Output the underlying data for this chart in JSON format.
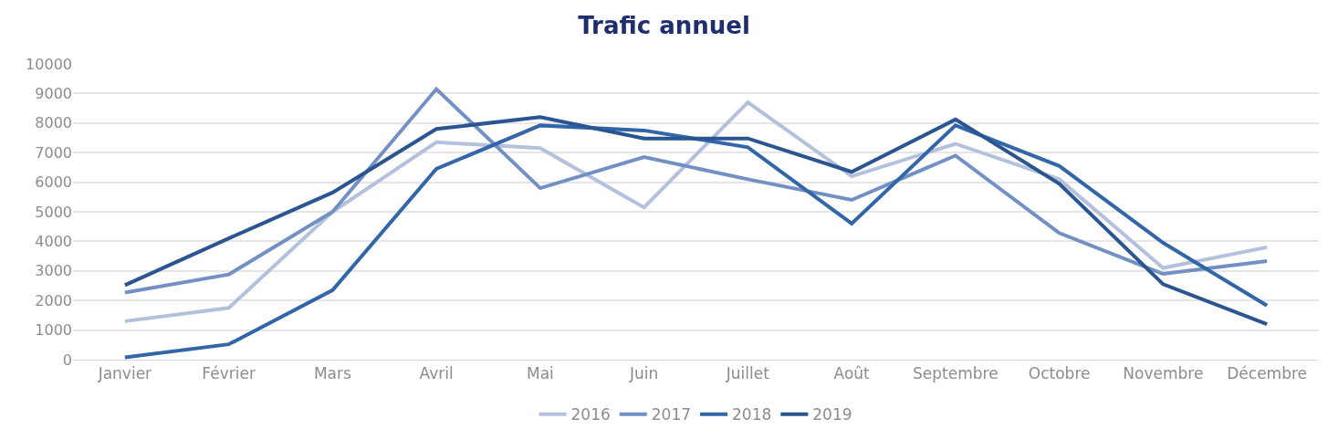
{
  "chart_data": {
    "type": "line",
    "title": "Trafic annuel",
    "categories": [
      "Janvier",
      "Février",
      "Mars",
      "Avril",
      "Mai",
      "Juin",
      "Juillet",
      "Août",
      "Septembre",
      "Octobre",
      "Novembre",
      "Décembre"
    ],
    "series": [
      {
        "name": "2016",
        "color": "#b4c0dc",
        "values": [
          1300,
          1750,
          5000,
          7350,
          7150,
          5150,
          8700,
          6200,
          7300,
          6100,
          3100,
          3800
        ]
      },
      {
        "name": "2017",
        "color": "#7390c4",
        "values": [
          2270,
          2880,
          5000,
          9150,
          5800,
          6850,
          6100,
          5400,
          6900,
          4280,
          2900,
          3330
        ]
      },
      {
        "name": "2018",
        "color": "#3366a8",
        "values": [
          80,
          520,
          2350,
          6450,
          7920,
          7750,
          7180,
          4600,
          7920,
          6550,
          3950,
          1830
        ]
      },
      {
        "name": "2019",
        "color": "#2a5590",
        "values": [
          2520,
          4100,
          5650,
          7800,
          8200,
          7480,
          7480,
          6350,
          8120,
          5950,
          2550,
          1200
        ]
      }
    ],
    "ylim": [
      0,
      10000
    ],
    "yticks": [
      0,
      1000,
      2000,
      3000,
      4000,
      5000,
      6000,
      7000,
      8000,
      9000,
      10000
    ],
    "grid": "y",
    "legend": "bottom",
    "marker": "none",
    "line_style": "solid"
  }
}
